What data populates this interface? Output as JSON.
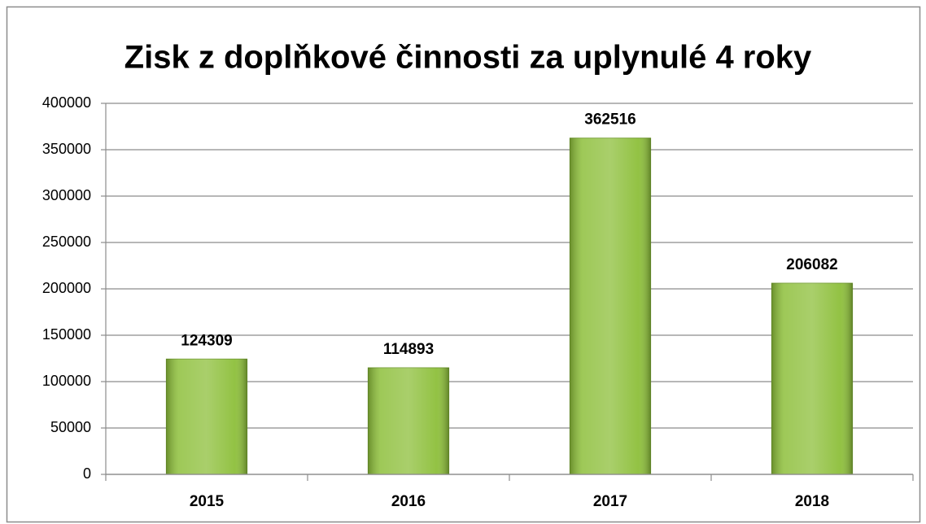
{
  "chart_data": {
    "type": "bar",
    "title": "Zisk z doplňkové činnosti za uplynulé 4 roky",
    "categories": [
      "2015",
      "2016",
      "2017",
      "2018"
    ],
    "values": [
      124309,
      114893,
      362516,
      206082
    ],
    "color": "#8dbf3a",
    "ylim": [
      0,
      400000
    ],
    "yticks": [
      0,
      50000,
      100000,
      150000,
      200000,
      250000,
      300000,
      350000,
      400000
    ],
    "grid": true
  }
}
